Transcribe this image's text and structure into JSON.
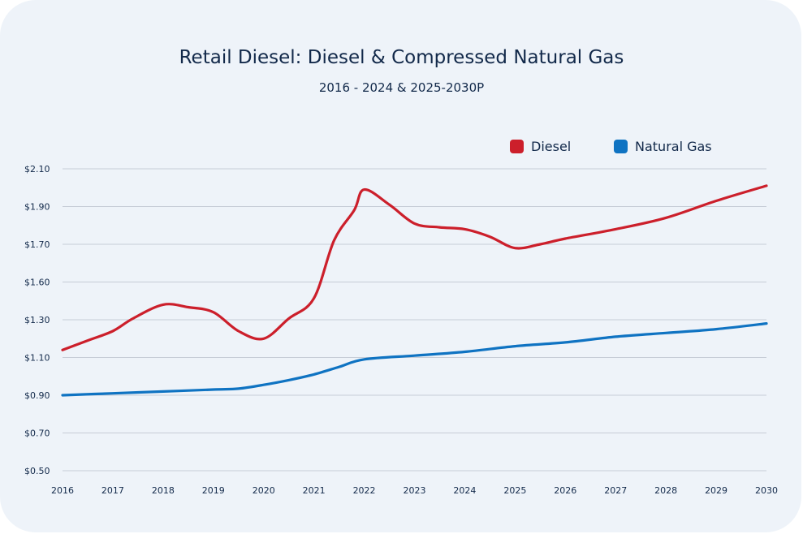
{
  "chart_data": {
    "type": "line",
    "title": "Retail Diesel: Diesel & Compressed Natural Gas",
    "subtitle": "2016 - 2024 & 2025-2030P",
    "xlabel": "",
    "ylabel": "",
    "grid": true,
    "legend_position": "top-right",
    "x_ticks": [
      "2016",
      "2017",
      "2018",
      "2019",
      "2020",
      "2021",
      "2022",
      "2023",
      "2024",
      "2025",
      "2026",
      "2027",
      "2028",
      "2029",
      "2030"
    ],
    "y_ticks": [
      "$0.50",
      "$0.70",
      "$0.90",
      "$1.10",
      "$1.30",
      "$1.60",
      "$1.70",
      "$1.90",
      "$2.10"
    ],
    "series": [
      {
        "name": "Diesel",
        "color": "#cc1f2b",
        "x": [
          2016,
          2016.5,
          2017,
          2017.4,
          2018,
          2018.5,
          2019,
          2019.5,
          2020,
          2020.5,
          2021,
          2021.4,
          2021.8,
          2022,
          2022.5,
          2023,
          2023.5,
          2024,
          2024.5,
          2025,
          2025.5,
          2026,
          2027,
          2028,
          2029,
          2030
        ],
        "values": [
          1.14,
          1.19,
          1.24,
          1.31,
          1.42,
          1.4,
          1.36,
          1.24,
          1.2,
          1.31,
          1.47,
          1.72,
          1.88,
          1.99,
          1.91,
          1.81,
          1.79,
          1.78,
          1.74,
          1.69,
          1.7,
          1.73,
          1.78,
          1.84,
          1.93,
          2.01
        ]
      },
      {
        "name": "Natural Gas",
        "color": "#0f73c2",
        "x": [
          2016,
          2017,
          2018,
          2019,
          2019.5,
          2020,
          2020.5,
          2021,
          2021.5,
          2022,
          2023,
          2024,
          2025,
          2026,
          2027,
          2028,
          2029,
          2030
        ],
        "values": [
          0.9,
          0.91,
          0.92,
          0.93,
          0.935,
          0.955,
          0.98,
          1.01,
          1.05,
          1.09,
          1.11,
          1.13,
          1.16,
          1.18,
          1.21,
          1.23,
          1.25,
          1.28
        ]
      }
    ]
  }
}
